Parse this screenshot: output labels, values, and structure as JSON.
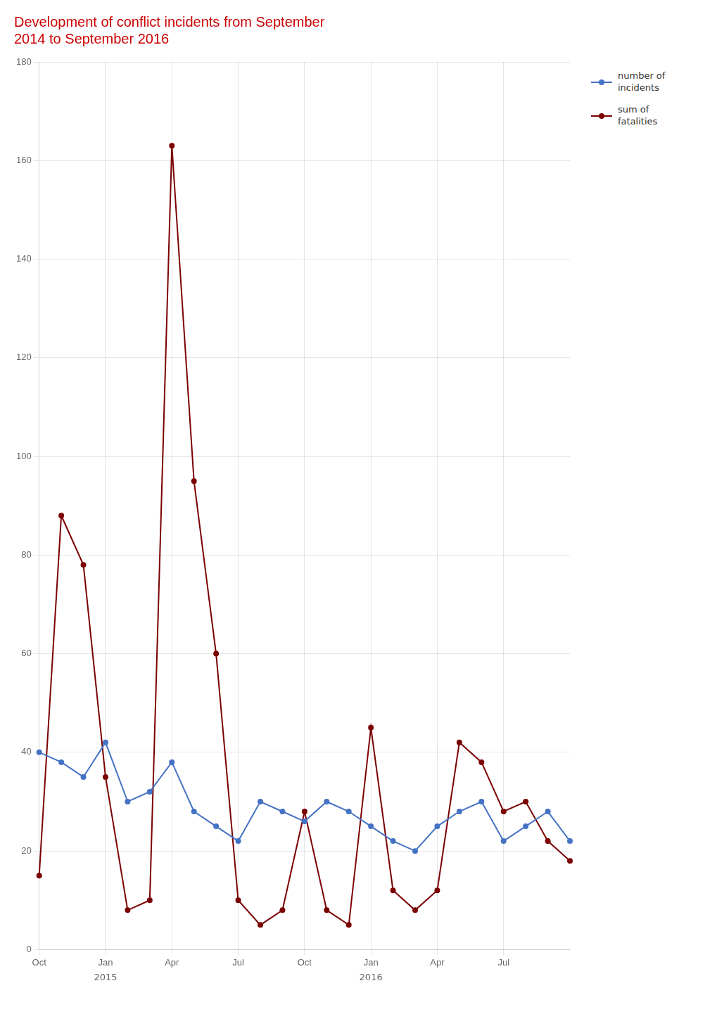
{
  "chart_data": {
    "type": "line",
    "title": "Development of conflict incidents from September\n2014 to September 2016",
    "categories": [
      "Oct",
      null,
      null,
      "Jan",
      null,
      null,
      "Apr",
      null,
      null,
      "Jul",
      null,
      null,
      "Oct",
      null,
      null,
      "Jan",
      null,
      null,
      "Apr",
      null,
      null,
      "Jul",
      null,
      null,
      null
    ],
    "series": [
      {
        "name": "number of\nincidents",
        "color": "#4472c4",
        "marker": "circle",
        "values": [
          40,
          38,
          35,
          42,
          30,
          32,
          38,
          28,
          25,
          22,
          30,
          28,
          26,
          30,
          28,
          25,
          22,
          20,
          25,
          28,
          30,
          22,
          25,
          28,
          22
        ]
      },
      {
        "name": "sum of\nfatalities",
        "color": "#7b0000",
        "marker": "circle",
        "values": [
          15,
          88,
          78,
          35,
          8,
          10,
          163,
          95,
          60,
          10,
          5,
          8,
          28,
          8,
          5,
          45,
          12,
          8,
          12,
          42,
          38,
          28,
          30,
          22,
          18
        ]
      }
    ],
    "ylim": [
      0,
      180
    ],
    "yticks": [
      0,
      20,
      40,
      60,
      80,
      100,
      120,
      140,
      160,
      180
    ],
    "grid": true,
    "legend": "right",
    "annotations": [
      {
        "text": "2015",
        "x": 3
      },
      {
        "text": "2016",
        "x": 15
      }
    ]
  }
}
